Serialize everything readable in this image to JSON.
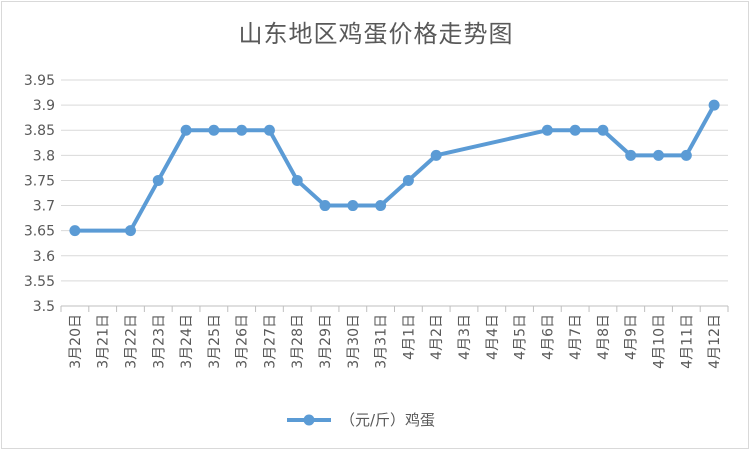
{
  "chart_data": {
    "type": "line",
    "title": "山东地区鸡蛋价格走势图",
    "xlabel": "",
    "ylabel": "",
    "ylim": [
      3.5,
      3.95
    ],
    "yticks": [
      "3.5",
      "3.55",
      "3.6",
      "3.65",
      "3.7",
      "3.75",
      "3.8",
      "3.85",
      "3.9",
      "3.95"
    ],
    "grid": true,
    "legend_position": "bottom",
    "categories": [
      "3月20日",
      "3月21日",
      "3月22日",
      "3月23日",
      "3月24日",
      "3月25日",
      "3月26日",
      "3月27日",
      "3月28日",
      "3月29日",
      "3月30日",
      "3月31日",
      "4月1日",
      "4月2日",
      "4月3日",
      "4月4日",
      "4月5日",
      "4月6日",
      "4月7日",
      "4月8日",
      "4月9日",
      "4月10日",
      "4月11日",
      "4月12日"
    ],
    "series": [
      {
        "name": "（元/斤）鸡蛋",
        "color": "#5b9bd5",
        "values": [
          3.65,
          null,
          3.65,
          3.75,
          3.85,
          3.85,
          3.85,
          3.85,
          3.75,
          3.7,
          3.7,
          3.7,
          3.75,
          3.8,
          null,
          null,
          null,
          3.85,
          3.85,
          3.85,
          3.8,
          3.8,
          3.8,
          3.9
        ]
      }
    ]
  }
}
